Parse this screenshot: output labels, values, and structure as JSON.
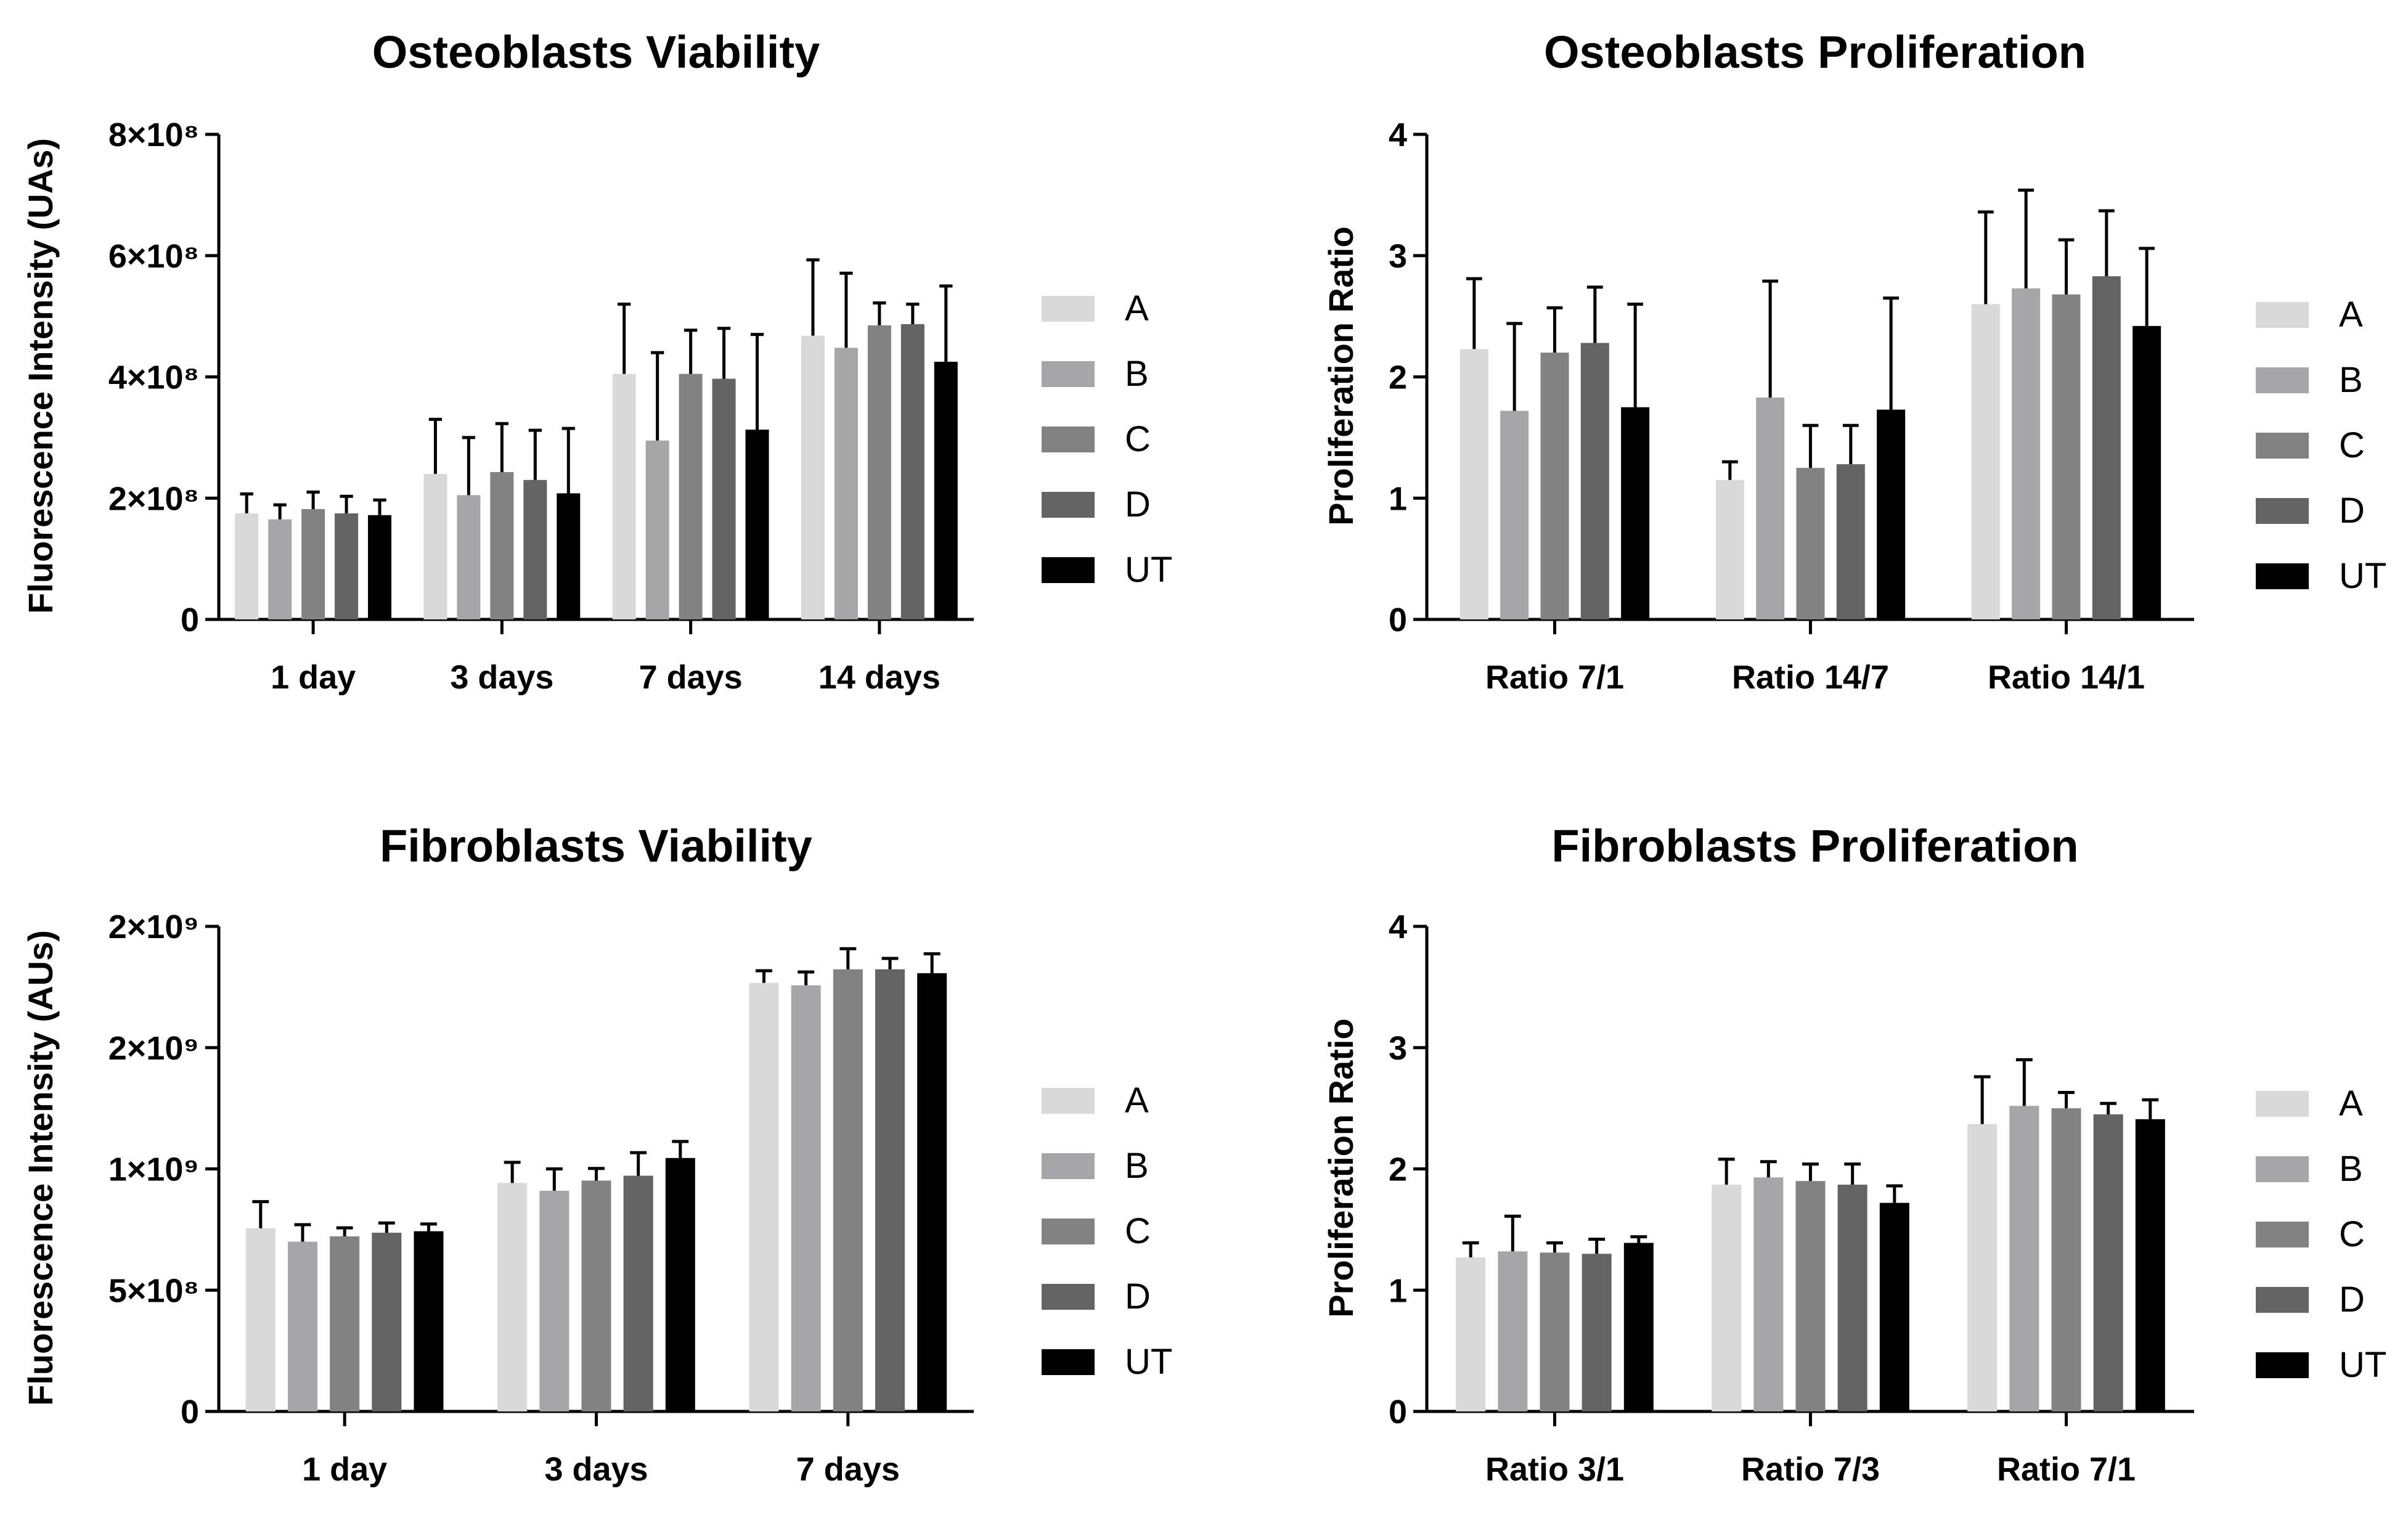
{
  "chart_data": [
    {
      "type": "bar",
      "title": "Osteoblasts Viability",
      "ylabel": "Fluorescence Intensity (UAs)",
      "xlabel": "",
      "categories": [
        "1 day",
        "3 days",
        "7 days",
        "14 days"
      ],
      "ylim": [
        0,
        800000000
      ],
      "yticks": [
        {
          "value": 0,
          "label": "0"
        },
        {
          "value": 200000000,
          "label": "2×10⁸"
        },
        {
          "value": 400000000,
          "label": "4×10⁸"
        },
        {
          "value": 600000000,
          "label": "6×10⁸"
        },
        {
          "value": 800000000,
          "label": "8×10⁸"
        }
      ],
      "series": [
        {
          "name": "A",
          "color": "#d9d9d9",
          "values": [
            175000000,
            240000000,
            405000000,
            468000000
          ],
          "errors": [
            32000000,
            90000000,
            115000000,
            125000000
          ]
        },
        {
          "name": "B",
          "color": "#a6a6a8",
          "values": [
            165000000,
            205000000,
            295000000,
            448000000
          ],
          "errors": [
            24000000,
            95000000,
            145000000,
            123000000
          ]
        },
        {
          "name": "C",
          "color": "#828282",
          "values": [
            182000000,
            243000000,
            405000000,
            485000000
          ],
          "errors": [
            28000000,
            80000000,
            72000000,
            37000000
          ]
        },
        {
          "name": "D",
          "color": "#636363",
          "values": [
            175000000,
            230000000,
            397000000,
            487000000
          ],
          "errors": [
            28000000,
            82000000,
            83000000,
            33000000
          ]
        },
        {
          "name": "UT",
          "color": "#000000",
          "values": [
            172000000,
            208000000,
            313000000,
            425000000
          ],
          "errors": [
            25000000,
            107000000,
            157000000,
            125000000
          ]
        }
      ],
      "legend_position": "right",
      "grid": false
    },
    {
      "type": "bar",
      "title": "Osteoblasts Proliferation",
      "ylabel": "Proliferation Ratio",
      "xlabel": "",
      "categories": [
        "Ratio 7/1",
        "Ratio 14/7",
        "Ratio 14/1"
      ],
      "ylim": [
        0,
        4
      ],
      "yticks": [
        {
          "value": 0,
          "label": "0"
        },
        {
          "value": 1,
          "label": "1"
        },
        {
          "value": 2,
          "label": "2"
        },
        {
          "value": 3,
          "label": "3"
        },
        {
          "value": 4,
          "label": "4"
        }
      ],
      "series": [
        {
          "name": "A",
          "color": "#d9d9d9",
          "values": [
            2.23,
            1.15,
            2.6
          ],
          "errors": [
            0.58,
            0.15,
            0.76
          ]
        },
        {
          "name": "B",
          "color": "#a6a6a8",
          "values": [
            1.72,
            1.83,
            2.73
          ],
          "errors": [
            0.72,
            0.96,
            0.81
          ]
        },
        {
          "name": "C",
          "color": "#828282",
          "values": [
            2.2,
            1.25,
            2.68
          ],
          "errors": [
            0.37,
            0.35,
            0.45
          ]
        },
        {
          "name": "D",
          "color": "#636363",
          "values": [
            2.28,
            1.28,
            2.83
          ],
          "errors": [
            0.46,
            0.32,
            0.54
          ]
        },
        {
          "name": "UT",
          "color": "#000000",
          "values": [
            1.75,
            1.73,
            2.42
          ],
          "errors": [
            0.85,
            0.92,
            0.64
          ]
        }
      ],
      "legend_position": "right",
      "grid": false
    },
    {
      "type": "bar",
      "title": "Fibroblasts Viability",
      "ylabel": "Fluorescence Intensity (AUs)",
      "xlabel": "",
      "categories": [
        "1 day",
        "3 days",
        "7 days"
      ],
      "ylim": [
        0,
        2000000000
      ],
      "yticks": [
        {
          "value": 0,
          "label": "0"
        },
        {
          "value": 500000000,
          "label": "5×10⁸"
        },
        {
          "value": 1000000000,
          "label": "1×10⁹"
        },
        {
          "value": 1500000000,
          "label": "2×10⁹"
        },
        {
          "value": 2000000000,
          "label": "2×10⁹"
        }
      ],
      "series": [
        {
          "name": "A",
          "color": "#d9d9d9",
          "values": [
            755000000,
            942000000,
            1767000000
          ],
          "errors": [
            110000000,
            85000000,
            50000000
          ]
        },
        {
          "name": "B",
          "color": "#a6a6a8",
          "values": [
            700000000,
            910000000,
            1757000000
          ],
          "errors": [
            70000000,
            90000000,
            55000000
          ]
        },
        {
          "name": "C",
          "color": "#828282",
          "values": [
            722000000,
            952000000,
            1823000000
          ],
          "errors": [
            35000000,
            50000000,
            85000000
          ]
        },
        {
          "name": "D",
          "color": "#636363",
          "values": [
            737000000,
            972000000,
            1823000000
          ],
          "errors": [
            40000000,
            95000000,
            45000000
          ]
        },
        {
          "name": "UT",
          "color": "#000000",
          "values": [
            743000000,
            1045000000,
            1807000000
          ],
          "errors": [
            30000000,
            68000000,
            80000000
          ]
        }
      ],
      "legend_position": "right",
      "grid": false
    },
    {
      "type": "bar",
      "title": "Fibroblasts Proliferation",
      "ylabel": "Proliferation Ratio",
      "xlabel": "",
      "categories": [
        "Ratio 3/1",
        "Ratio 7/3",
        "Ratio 7/1"
      ],
      "ylim": [
        0,
        4
      ],
      "yticks": [
        {
          "value": 0,
          "label": "0"
        },
        {
          "value": 1,
          "label": "1"
        },
        {
          "value": 2,
          "label": "2"
        },
        {
          "value": 3,
          "label": "3"
        },
        {
          "value": 4,
          "label": "4"
        }
      ],
      "series": [
        {
          "name": "A",
          "color": "#d9d9d9",
          "values": [
            1.27,
            1.87,
            2.37
          ],
          "errors": [
            0.12,
            0.21,
            0.39
          ]
        },
        {
          "name": "B",
          "color": "#a6a6a8",
          "values": [
            1.32,
            1.93,
            2.52
          ],
          "errors": [
            0.29,
            0.13,
            0.38
          ]
        },
        {
          "name": "C",
          "color": "#828282",
          "values": [
            1.31,
            1.9,
            2.5
          ],
          "errors": [
            0.08,
            0.14,
            0.13
          ]
        },
        {
          "name": "D",
          "color": "#636363",
          "values": [
            1.3,
            1.87,
            2.45
          ],
          "errors": [
            0.12,
            0.17,
            0.09
          ]
        },
        {
          "name": "UT",
          "color": "#000000",
          "values": [
            1.39,
            1.72,
            2.41
          ],
          "errors": [
            0.05,
            0.14,
            0.16
          ]
        }
      ],
      "legend_position": "right",
      "grid": false
    }
  ]
}
